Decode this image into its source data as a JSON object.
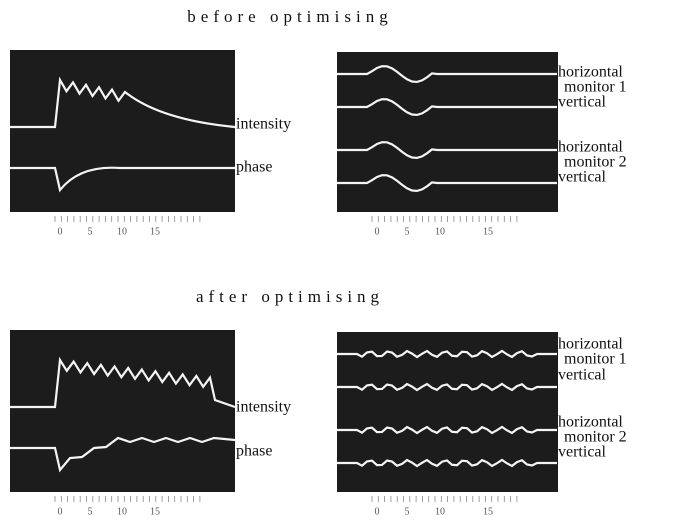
{
  "sections": [
    {
      "title": "before optimising",
      "left_panel": {
        "labels": [
          "intensity",
          "phase"
        ],
        "scale": [
          "0",
          "5",
          "10",
          "15"
        ]
      },
      "right_panel": {
        "monitors": [
          {
            "horizontal": "horizontal",
            "monitor": "monitor 1",
            "vertical": "vertical"
          },
          {
            "horizontal": "horizontal",
            "monitor": "monitor 2",
            "vertical": "vertical"
          }
        ],
        "scale": [
          "0",
          "5",
          "10",
          "15"
        ]
      }
    },
    {
      "title": "after optimising",
      "left_panel": {
        "labels": [
          "intensity",
          "phase"
        ],
        "scale": [
          "0",
          "5",
          "10",
          "15"
        ]
      },
      "right_panel": {
        "monitors": [
          {
            "horizontal": "horizontal",
            "monitor": "monitor 1",
            "vertical": "vertical"
          },
          {
            "horizontal": "horizontal",
            "monitor": "monitor 2",
            "vertical": "vertical"
          }
        ],
        "scale": [
          "0",
          "5",
          "10",
          "15"
        ]
      }
    }
  ]
}
